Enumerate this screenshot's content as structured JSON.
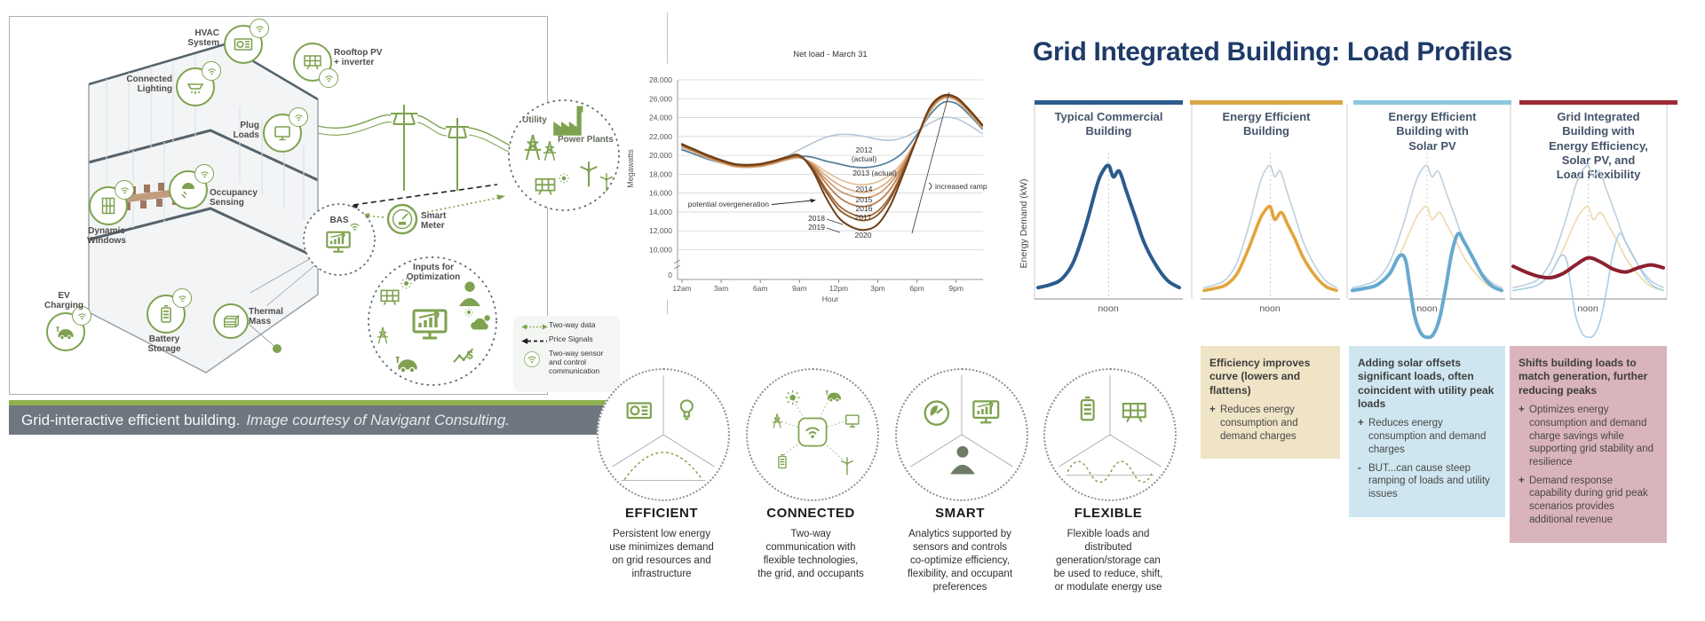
{
  "left": {
    "caption": "Grid-interactive efficient building.",
    "caption_credit": "Image courtesy of Navigant Consulting.",
    "labels": {
      "hvac": "HVAC\nSystem",
      "rooftop": "Rooftop PV\n+ inverter",
      "lighting": "Connected\nLighting",
      "plug": "Plug\nLoads",
      "occupancy": "Occupancy\nSensing",
      "windows": "Dynamic\nWindows",
      "ev": "EV\nCharging",
      "battery": "Battery\nStorage",
      "thermal": "Thermal\nMass",
      "bas": "BAS",
      "meter": "Smart\nMeter",
      "utility": "Utility",
      "power_plants": "Power Plants",
      "inputs": "Inputs for\nOptimization"
    },
    "legend": {
      "two_way_data": "Two-way data",
      "price_signals": "Price Signals",
      "sensor": "Two-way sensor\nand control\ncommunication"
    }
  },
  "pillars": [
    {
      "title": "EFFICIENT",
      "desc": "Persistent low energy\nuse minimizes demand\non grid resources and\ninfrastructure"
    },
    {
      "title": "CONNECTED",
      "desc": "Two-way\ncommunication with\nflexible technologies,\nthe grid, and occupants"
    },
    {
      "title": "SMART",
      "desc": "Analytics supported by\nsensors and controls\nco-optimize efficiency,\nflexibility, and occupant\npreferences"
    },
    {
      "title": "FLEXIBLE",
      "desc": "Flexible loads and\ndistributed\ngeneration/storage can\nbe used to reduce, shift,\nor modulate energy use"
    }
  ],
  "right": {
    "title": "Grid Integrated Building: Load Profiles",
    "ylabel": "Energy Demand (kW)",
    "columns": [
      {
        "header": "Typical Commercial\nBuilding",
        "bar_color": "#2d5d8e",
        "noon": "noon"
      },
      {
        "header": "Energy Efficient\nBuilding",
        "bar_color": "#d9a844",
        "noon": "noon",
        "box": {
          "bg": "#f0e4c6",
          "heading": "Efficiency improves curve (lowers and flattens)",
          "bullets": [
            {
              "sign": "+",
              "text": "Reduces energy consumption and demand charges"
            }
          ]
        }
      },
      {
        "header": "Energy Efficient\nBuilding with\nSolar PV",
        "bar_color": "#8ec6de",
        "noon": "noon",
        "box": {
          "bg": "#cfe6f0",
          "heading": "Adding solar offsets significant loads, often coincident with utility peak loads",
          "bullets": [
            {
              "sign": "+",
              "text": "Reduces energy consumption and demand charges"
            },
            {
              "sign": "-",
              "text": "BUT...can cause steep ramping of loads and utility issues"
            }
          ]
        }
      },
      {
        "header": "Grid Integrated\nBuilding with\nEnergy Efficiency,\nSolar PV, and\nLoad Flexibility",
        "bar_color": "#9c2a35",
        "noon": "noon",
        "box": {
          "bg": "#dab4bc",
          "heading": "Shifts building loads to match generation, further reducing peaks",
          "bullets": [
            {
              "sign": "+",
              "text": "Optimizes energy consumption and demand charge savings while supporting grid stability and resilience"
            },
            {
              "sign": "+",
              "text": "Demand response capability during grid peak scenarios provides additional revenue"
            }
          ]
        }
      }
    ]
  },
  "chart_data": [
    {
      "type": "line",
      "title": "Net load - March 31",
      "xlabel": "Hour",
      "ylabel": "Megawatts",
      "ylim": [
        0,
        28000
      ],
      "grid": true,
      "ytick_values": [
        28000,
        26000,
        24000,
        22000,
        20000,
        18000,
        16000,
        14000,
        12000,
        10000
      ],
      "ytick_labels": [
        "28,000",
        "26,000",
        "24,000",
        "22,000",
        "20,000",
        "18,000",
        "16,000",
        "14,000",
        "12,000",
        "10,000"
      ],
      "ytick_zero": "0",
      "xtick_hours": [
        0,
        3,
        6,
        9,
        12,
        15,
        18,
        21
      ],
      "xtick_labels": [
        "12am",
        "3am",
        "6am",
        "9am",
        "12pm",
        "3pm",
        "6pm",
        "9pm"
      ],
      "hours": [
        0,
        1,
        2,
        3,
        4,
        5,
        6,
        7,
        8,
        9,
        10,
        11,
        12,
        13,
        14,
        15,
        16,
        17,
        18,
        19,
        20,
        21,
        22,
        23
      ],
      "series": [
        {
          "name": "2012 (actual)",
          "color": "#b6c5d8",
          "width": 1.6,
          "values": [
            20800,
            20300,
            19800,
            19400,
            19100,
            19000,
            19100,
            19400,
            19900,
            20600,
            21300,
            21900,
            22200,
            22200,
            22000,
            21700,
            21600,
            21900,
            22600,
            23400,
            24000,
            23900,
            23200,
            22300
          ]
        },
        {
          "name": "2013 (actual)",
          "color": "#57829b",
          "width": 1.8,
          "values": [
            20600,
            20100,
            19600,
            19200,
            18900,
            18800,
            18900,
            19200,
            19700,
            19900,
            19800,
            19400,
            19100,
            18800,
            18700,
            18900,
            19400,
            20400,
            22200,
            24300,
            25600,
            25500,
            24300,
            22800
          ]
        },
        {
          "name": "2014",
          "color": "#e3bc98",
          "width": 1.6,
          "values": [
            20900,
            20300,
            19700,
            19200,
            18800,
            18700,
            18800,
            19100,
            19500,
            19700,
            19200,
            18300,
            17500,
            17000,
            16900,
            17200,
            18000,
            19500,
            21800,
            24600,
            26000,
            25800,
            24500,
            22900
          ]
        },
        {
          "name": "2015",
          "color": "#d9a87e",
          "width": 1.6,
          "values": [
            20950,
            20350,
            19750,
            19250,
            18850,
            18750,
            18850,
            19150,
            19550,
            19750,
            19100,
            17900,
            16900,
            16300,
            16100,
            16500,
            17500,
            19300,
            21800,
            24700,
            26100,
            25900,
            24600,
            23000
          ]
        },
        {
          "name": "2016",
          "color": "#cb9464",
          "width": 1.6,
          "values": [
            21000,
            20400,
            19800,
            19300,
            18900,
            18800,
            18900,
            19200,
            19600,
            19800,
            19000,
            17500,
            16300,
            15700,
            15500,
            15900,
            17100,
            19100,
            21800,
            24800,
            26150,
            25950,
            24650,
            23050
          ]
        },
        {
          "name": "2017",
          "color": "#b87b4a",
          "width": 1.7,
          "values": [
            21050,
            20450,
            19850,
            19350,
            18950,
            18850,
            18950,
            19250,
            19650,
            19850,
            18900,
            17100,
            15600,
            14800,
            14600,
            15100,
            16500,
            18900,
            21800,
            24900,
            26200,
            26000,
            24700,
            23100
          ]
        },
        {
          "name": "2018",
          "color": "#a06432",
          "width": 1.7,
          "values": [
            21100,
            20500,
            19900,
            19400,
            19000,
            18900,
            19000,
            19300,
            19700,
            19900,
            18700,
            16500,
            14700,
            13800,
            13500,
            14100,
            15800,
            18600,
            21800,
            25000,
            26250,
            26050,
            24750,
            23150
          ]
        },
        {
          "name": "2019",
          "color": "#8b5424",
          "width": 1.8,
          "values": [
            21150,
            20550,
            19950,
            19450,
            19050,
            18950,
            19050,
            19350,
            19750,
            19950,
            18600,
            16200,
            14300,
            13400,
            13100,
            13700,
            15500,
            18500,
            21800,
            25050,
            26300,
            26100,
            24800,
            23200
          ]
        },
        {
          "name": "2020",
          "color": "#6e3e15",
          "width": 2.0,
          "values": [
            21200,
            20600,
            20000,
            19500,
            19100,
            19000,
            19100,
            19400,
            19800,
            20000,
            18400,
            15600,
            13400,
            12400,
            12100,
            12700,
            14800,
            18200,
            21800,
            25100,
            26350,
            26150,
            24850,
            23250
          ]
        }
      ],
      "labels": {
        "y2012": "2012",
        "y2012b": "(actual)",
        "y2013": "2013 (actual)",
        "y2014": "2014",
        "y2015": "2015",
        "y2016": "2016",
        "y2017": "2017",
        "y2018": "2018",
        "y2019": "2019",
        "y2020": "2020"
      },
      "annotations": {
        "overgeneration": "potential overgeneration",
        "ramp": "increased ramp"
      }
    },
    {
      "type": "line",
      "note": "normalized daily load profiles, x = hours 0-24, y = relative energy demand",
      "x_range_hours": [
        0,
        24
      ],
      "series": {
        "typical": [
          [
            0,
            0.08
          ],
          [
            2,
            0.1
          ],
          [
            4,
            0.14
          ],
          [
            6,
            0.26
          ],
          [
            8,
            0.5
          ],
          [
            10,
            0.8
          ],
          [
            11,
            0.9
          ],
          [
            12,
            0.94
          ],
          [
            12.8,
            0.86
          ],
          [
            13.8,
            0.9
          ],
          [
            15,
            0.76
          ],
          [
            16.5,
            0.58
          ],
          [
            18,
            0.4
          ],
          [
            20,
            0.24
          ],
          [
            22,
            0.13
          ],
          [
            24,
            0.08
          ]
        ],
        "efficient": [
          [
            0,
            0.06
          ],
          [
            2,
            0.075
          ],
          [
            4,
            0.1
          ],
          [
            6,
            0.18
          ],
          [
            8,
            0.35
          ],
          [
            10,
            0.55
          ],
          [
            11,
            0.62
          ],
          [
            12,
            0.65
          ],
          [
            12.8,
            0.56
          ],
          [
            14,
            0.61
          ],
          [
            15.2,
            0.52
          ],
          [
            16.5,
            0.42
          ],
          [
            18,
            0.29
          ],
          [
            20,
            0.17
          ],
          [
            22,
            0.09
          ],
          [
            24,
            0.06
          ]
        ],
        "solar": [
          [
            0,
            0.06
          ],
          [
            2,
            0.075
          ],
          [
            4,
            0.1
          ],
          [
            6,
            0.18
          ],
          [
            7.5,
            0.3
          ],
          [
            8.5,
            0.28
          ],
          [
            9.2,
            0.1
          ],
          [
            10,
            -0.12
          ],
          [
            11,
            -0.24
          ],
          [
            12,
            -0.27
          ],
          [
            13,
            -0.25
          ],
          [
            14,
            -0.14
          ],
          [
            15,
            0.08
          ],
          [
            16,
            0.33
          ],
          [
            17,
            0.46
          ],
          [
            18,
            0.4
          ],
          [
            19.5,
            0.28
          ],
          [
            21,
            0.16
          ],
          [
            22.5,
            0.09
          ],
          [
            24,
            0.06
          ]
        ],
        "flexible": [
          [
            0,
            0.23
          ],
          [
            2,
            0.19
          ],
          [
            4,
            0.16
          ],
          [
            6,
            0.15
          ],
          [
            8,
            0.18
          ],
          [
            10,
            0.24
          ],
          [
            12,
            0.29
          ],
          [
            14,
            0.26
          ],
          [
            16,
            0.21
          ],
          [
            18,
            0.19
          ],
          [
            20,
            0.22
          ],
          [
            22,
            0.24
          ],
          [
            24,
            0.22
          ]
        ]
      },
      "columns": [
        {
          "curves": [
            {
              "series": "typical",
              "color": "#2b5c8d",
              "width": 4
            }
          ]
        },
        {
          "curves": [
            {
              "series": "typical",
              "color": "#bccfde",
              "width": 1.6
            },
            {
              "series": "efficient",
              "color": "#e2a43c",
              "width": 3.6
            }
          ]
        },
        {
          "curves": [
            {
              "series": "typical",
              "color": "#bccfde",
              "width": 1.6
            },
            {
              "series": "efficient",
              "color": "#eed9ab",
              "width": 1.6
            },
            {
              "series": "solar",
              "color": "#67a9cf",
              "width": 4
            }
          ]
        },
        {
          "curves": [
            {
              "series": "typical",
              "color": "#bccfde",
              "width": 1.6
            },
            {
              "series": "efficient",
              "color": "#eed9ab",
              "width": 1.6
            },
            {
              "series": "solar",
              "color": "#a9cfe4",
              "width": 1.6
            },
            {
              "series": "flexible",
              "color": "#8e2030",
              "width": 4
            }
          ]
        }
      ]
    }
  ]
}
